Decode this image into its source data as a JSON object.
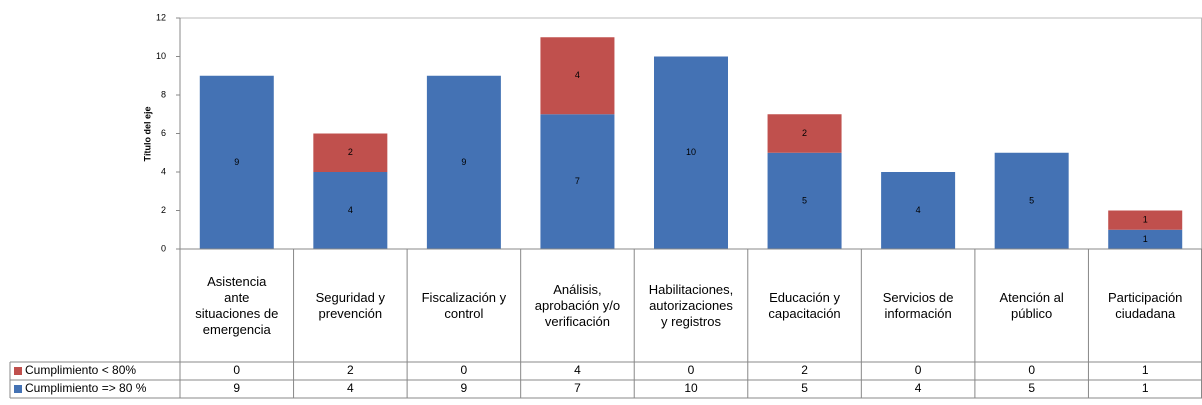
{
  "chart_data": {
    "type": "bar",
    "stacked": true,
    "y_axis_label": "Título del eje",
    "categories": [
      "Asistencia ante situaciones de emergencia",
      "Seguridad y prevención",
      "Fiscalización y control",
      "Análisis, aprobación y/o verificación",
      "Habilitaciones, autorizaciones y registros",
      "Educación y capacitación",
      "Servicios de información",
      "Atención al público",
      "Participación ciudadana"
    ],
    "series": [
      {
        "name": "Cumplimiento => 80 %",
        "color": "#4472b4",
        "values": [
          9,
          4,
          9,
          7,
          10,
          5,
          4,
          5,
          1
        ]
      },
      {
        "name": "Cumplimiento < 80%",
        "color": "#c0504d",
        "values": [
          0,
          2,
          0,
          4,
          0,
          2,
          0,
          0,
          1
        ]
      }
    ],
    "ylim": [
      0,
      12
    ],
    "yticks": [
      0,
      2,
      4,
      6,
      8,
      10,
      12
    ]
  }
}
